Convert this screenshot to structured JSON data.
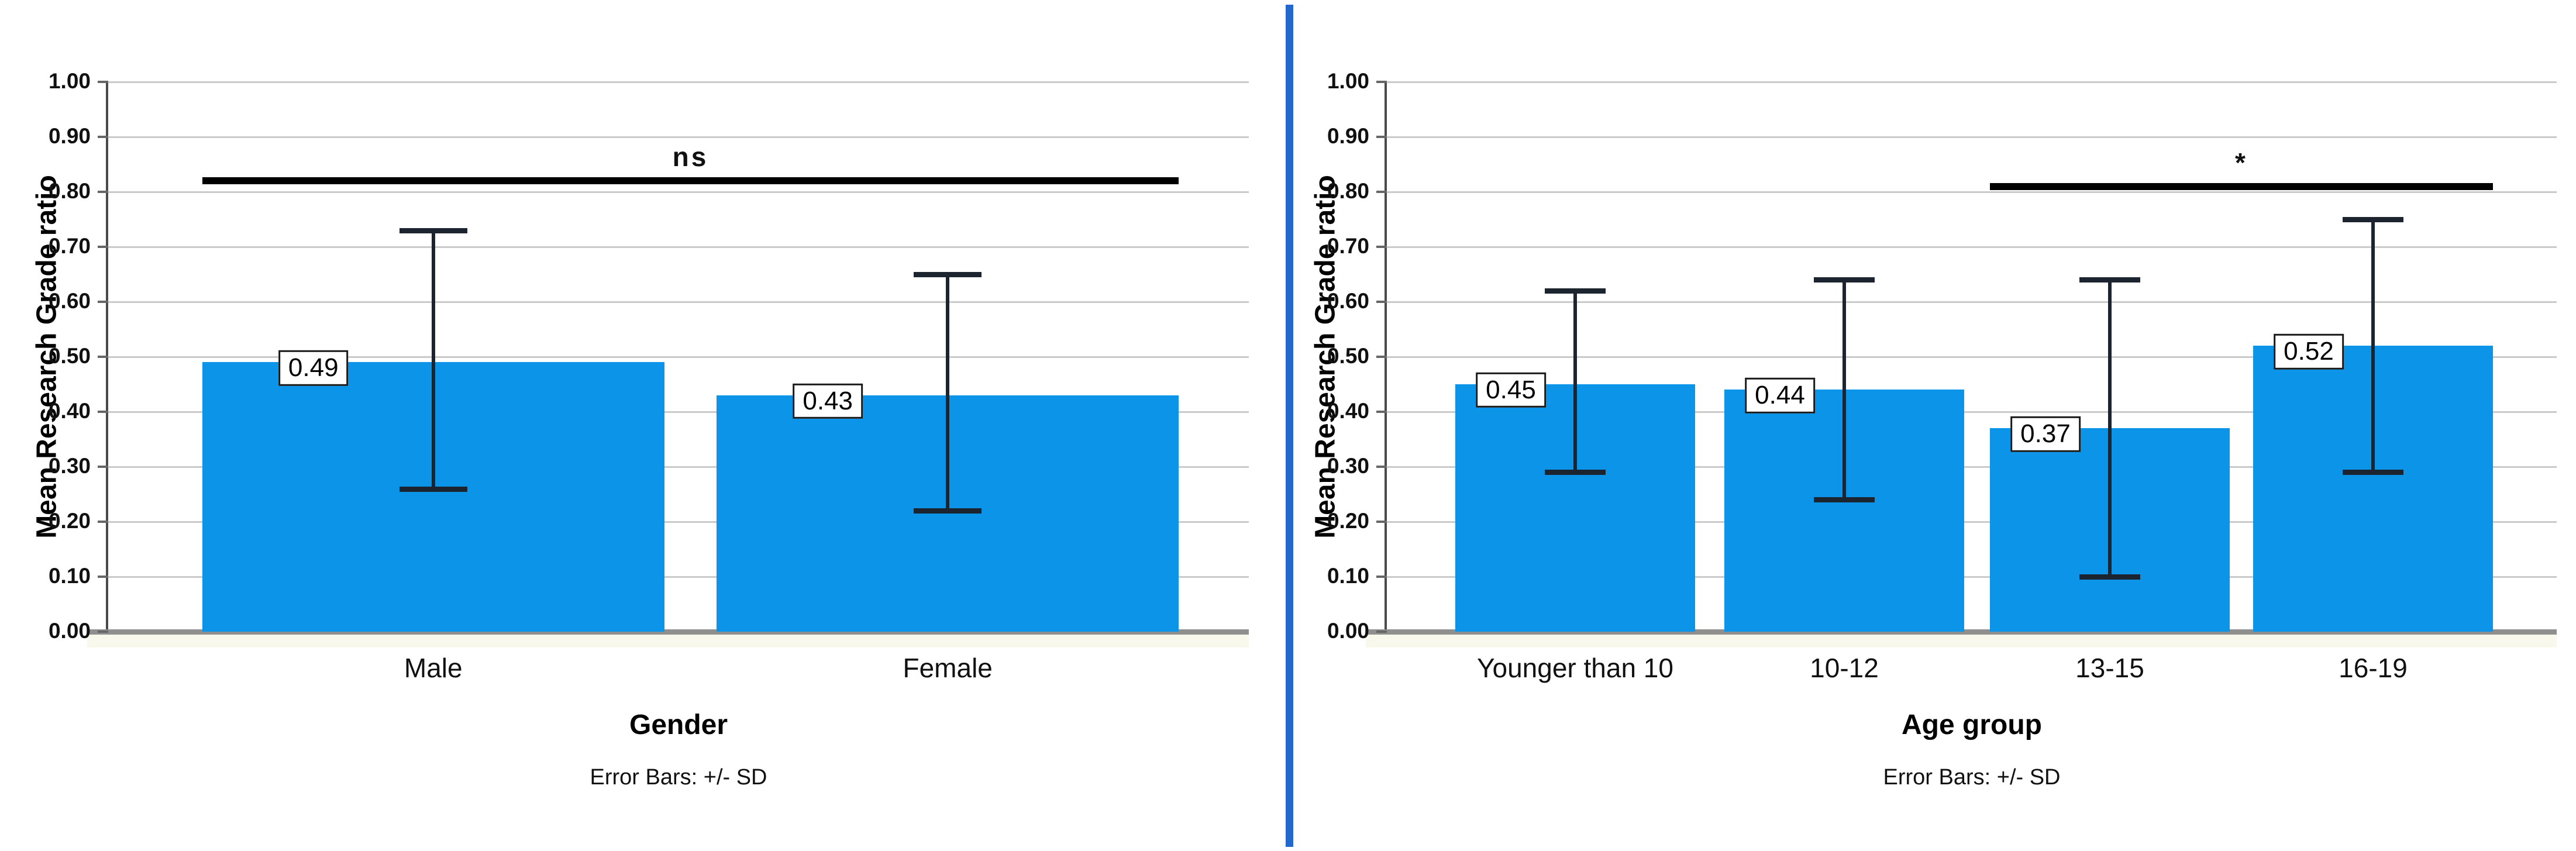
{
  "figure": {
    "background": "#ffffff",
    "divider_color": "#2268cd"
  },
  "chart_data": [
    {
      "type": "bar",
      "categories": [
        "Male",
        "Female"
      ],
      "values": [
        0.49,
        0.43
      ],
      "value_labels": [
        "0.49",
        "0.43"
      ],
      "error_low": [
        0.26,
        0.22
      ],
      "error_high": [
        0.73,
        0.65
      ],
      "significance": {
        "label": "ns",
        "y": 0.82,
        "from": 0,
        "to": 1
      },
      "xlabel": "Gender",
      "ylabel": "Mean Research Grade ratio",
      "caption": "Error Bars: +/- SD",
      "ylim": [
        0,
        1
      ],
      "ytick_step": 0.1,
      "ytick_labels": [
        "0.00",
        "0.10",
        "0.20",
        "0.30",
        "0.40",
        "0.50",
        "0.60",
        "0.70",
        "0.80",
        "0.90",
        "1.00"
      ],
      "grid": true,
      "legend": "none",
      "bar_color": "#0c95e8"
    },
    {
      "type": "bar",
      "categories": [
        "Younger than 10",
        "10-12",
        "13-15",
        "16-19"
      ],
      "values": [
        0.45,
        0.44,
        0.37,
        0.52
      ],
      "value_labels": [
        "0.45",
        "0.44",
        "0.37",
        "0.52"
      ],
      "error_low": [
        0.29,
        0.24,
        0.1,
        0.29
      ],
      "error_high": [
        0.62,
        0.64,
        0.64,
        0.75
      ],
      "significance": {
        "label": "*",
        "y": 0.81,
        "from": 2,
        "to": 3
      },
      "xlabel": "Age group",
      "ylabel": "Mean Research Grade ratio",
      "caption": "Error Bars: +/- SD",
      "ylim": [
        0,
        1
      ],
      "ytick_step": 0.1,
      "ytick_labels": [
        "0.00",
        "0.10",
        "0.20",
        "0.30",
        "0.40",
        "0.50",
        "0.60",
        "0.70",
        "0.80",
        "0.90",
        "1.00"
      ],
      "grid": true,
      "legend": "none",
      "bar_color": "#0c95e8"
    }
  ]
}
